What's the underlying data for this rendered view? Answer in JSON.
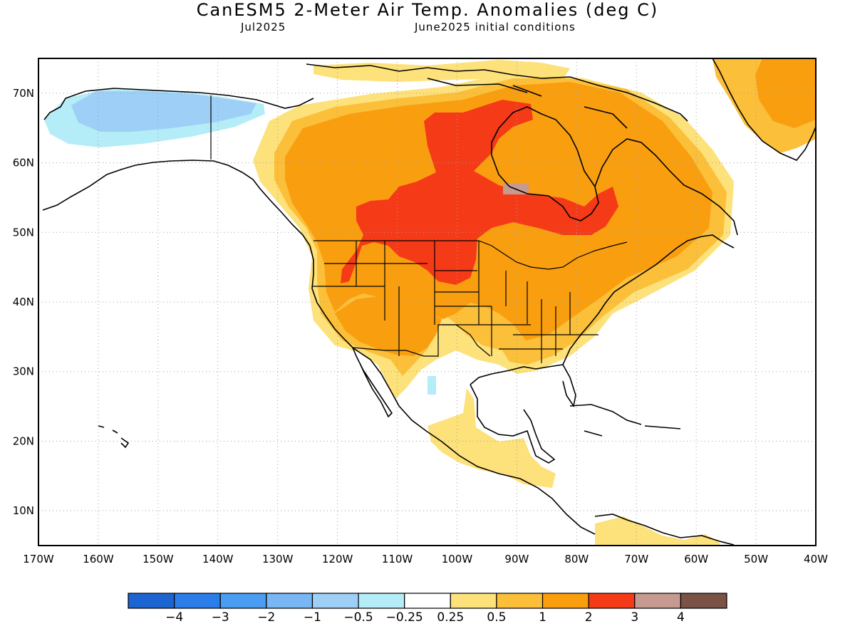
{
  "title": "CanESM5 2-Meter Air Temp. Anomalies (deg C)",
  "valid_month": "Jul2025",
  "init_conditions": "June2025 initial conditions",
  "lon_ticks": [
    "170W",
    "160W",
    "150W",
    "140W",
    "130W",
    "120W",
    "110W",
    "100W",
    "90W",
    "80W",
    "70W",
    "60W",
    "50W",
    "40W"
  ],
  "lat_ticks": [
    "70N",
    "60N",
    "50N",
    "40N",
    "30N",
    "20N",
    "10N"
  ],
  "map_extent": {
    "lon_min": -170,
    "lon_max": -40,
    "lat_min": 5,
    "lat_max": 75
  },
  "colorbar": {
    "colors": [
      "#1c64d2",
      "#2b7de9",
      "#4a9df0",
      "#78b7f4",
      "#9ecff7",
      "#b4ecf7",
      "#ffffff",
      "#fde17a",
      "#fbbf3a",
      "#f99f0f",
      "#f53a18",
      "#c69a90",
      "#7b5246"
    ],
    "labels": [
      "−4",
      "−3",
      "−2",
      "−1",
      "−0.5",
      "−0.25",
      "0.25",
      "0.5",
      "1",
      "2",
      "3",
      "4"
    ]
  }
}
